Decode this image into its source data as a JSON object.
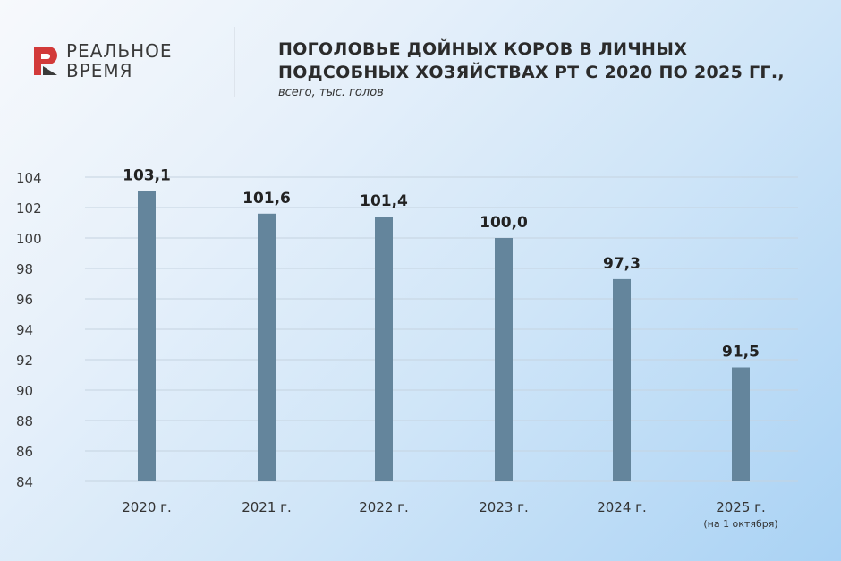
{
  "brand": {
    "line1": "РЕАЛЬНОЕ",
    "line2": "ВРЕМЯ",
    "logo_color": "#d23a3a"
  },
  "header": {
    "title_line1": "ПОГОЛОВЬЕ ДОЙНЫХ КОРОВ В ЛИЧНЫХ",
    "title_line2": "ПОДСОБНЫХ ХОЗЯЙСТВАХ РТ С 2020 ПО 2025 ГГ.,",
    "subtitle": "всего, тыс. голов"
  },
  "chart_data": {
    "type": "bar",
    "categories": [
      "2020 г.",
      "2021 г.",
      "2022 г.",
      "2023 г.",
      "2024 г.",
      "2025 г."
    ],
    "category_notes": [
      "",
      "",
      "",
      "",
      "",
      "(на 1 октября)"
    ],
    "values": [
      103.1,
      101.6,
      101.4,
      100.0,
      97.3,
      91.5
    ],
    "value_labels": [
      "103,1",
      "101,6",
      "101,4",
      "100,0",
      "97,3",
      "91,5"
    ],
    "yticks": [
      84,
      86,
      88,
      90,
      92,
      94,
      96,
      98,
      100,
      102,
      104
    ],
    "ylim": [
      84,
      104
    ],
    "grid": true,
    "bar_color": "#64859c",
    "title": "ПОГОЛОВЬЕ ДОЙНЫХ КОРОВ В ЛИЧНЫХ ПОДСОБНЫХ ХОЗЯЙСТВАХ РТ С 2020 ПО 2025 ГГ.,",
    "subtitle": "всего, тыс. голов"
  }
}
